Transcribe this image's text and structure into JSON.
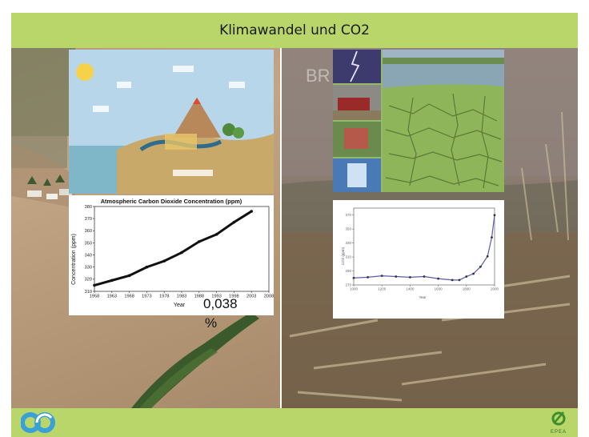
{
  "title": "Klimawandel und CO2",
  "watermark": "BR",
  "annotation": {
    "value": "0,038",
    "unit": "%"
  },
  "logo_right": "EPEA",
  "colors": {
    "band": "#b9d66a",
    "logo_blue": "#3aa0d8",
    "logo_green": "#3e8e2a"
  },
  "chart_data": [
    {
      "type": "line",
      "title": "Atmospheric Carbon Dioxide Concentration (ppm)",
      "xlabel": "Year",
      "ylabel": "Concentration (ppm)",
      "xlim": [
        1958,
        2008
      ],
      "ylim": [
        310,
        380
      ],
      "x_ticks": [
        "1958",
        "1963",
        "1968",
        "1973",
        "1978",
        "1983",
        "1988",
        "1993",
        "1998",
        "2003",
        "2008"
      ],
      "y_ticks": [
        "310",
        "320",
        "330",
        "340",
        "350",
        "360",
        "370",
        "380"
      ],
      "series": [
        {
          "x": [
            1958,
            1963,
            1968,
            1973,
            1978,
            1983,
            1988,
            1993,
            1998,
            2003
          ],
          "values": [
            315,
            319,
            323,
            330,
            335,
            342,
            351,
            357,
            367,
            376
          ]
        }
      ]
    },
    {
      "type": "line",
      "xlabel": "Year",
      "ylabel": "CO2 (ppm)",
      "xlim": [
        1000,
        2000
      ],
      "ylim": [
        270,
        380
      ],
      "x_ticks": [
        "1000",
        "1200",
        "1400",
        "1600",
        "1800",
        "2000"
      ],
      "y_ticks": [
        "270",
        "290",
        "310",
        "330",
        "350",
        "370"
      ],
      "series": [
        {
          "x": [
            1000,
            1100,
            1200,
            1300,
            1400,
            1500,
            1600,
            1700,
            1750,
            1800,
            1850,
            1900,
            1950,
            1980,
            2000
          ],
          "values": [
            280,
            281,
            283,
            282,
            281,
            282,
            279,
            277,
            277,
            282,
            286,
            296,
            311,
            338,
            370
          ]
        }
      ]
    }
  ]
}
